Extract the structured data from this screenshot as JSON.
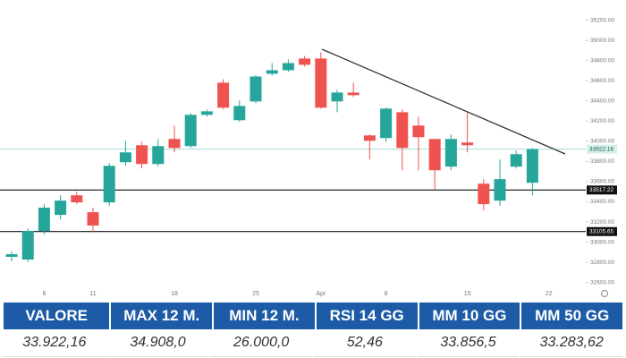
{
  "chart_data": {
    "type": "candlestick",
    "categories": [
      null,
      null,
      "6",
      null,
      null,
      "11",
      null,
      null,
      null,
      null,
      "18",
      null,
      null,
      null,
      null,
      "25",
      null,
      null,
      null,
      "Apr",
      null,
      null,
      null,
      "8",
      null,
      null,
      null,
      null,
      "15",
      null,
      null,
      null,
      null,
      "22"
    ],
    "open": [
      32855,
      32828,
      33111,
      33271,
      33465,
      33297,
      33395,
      33793,
      33961,
      33775,
      34023,
      33952,
      34262,
      34581,
      34209,
      34395,
      34669,
      34704,
      34820,
      34820,
      34395,
      34483,
      34058,
      34032,
      34288,
      34156,
      34023,
      33749,
      33988,
      33580,
      33412,
      33749,
      33589,
      null
    ],
    "high": [
      32908,
      33138,
      33377,
      33465,
      33501,
      33342,
      33784,
      34005,
      33996,
      34023,
      34156,
      34280,
      34315,
      34616,
      34404,
      34660,
      34775,
      34811,
      34846,
      34881,
      34510,
      34581,
      34067,
      34333,
      34315,
      34244,
      34023,
      34067,
      34288,
      33625,
      33819,
      33908,
      33934,
      null
    ],
    "low": [
      32810,
      32802,
      33076,
      33226,
      33377,
      33094,
      33359,
      33757,
      33731,
      33749,
      33890,
      33934,
      34244,
      34315,
      34191,
      34377,
      34651,
      34687,
      34740,
      34324,
      34288,
      34439,
      33819,
      33996,
      33713,
      33713,
      33519,
      33713,
      33890,
      33315,
      33359,
      33731,
      33465,
      null
    ],
    "close": [
      32881,
      33111,
      33342,
      33412,
      33395,
      33165,
      33757,
      33890,
      33775,
      33952,
      33934,
      34262,
      34297,
      34333,
      34350,
      34642,
      34704,
      34775,
      34758,
      34333,
      34483,
      34457,
      34005,
      34324,
      33934,
      34041,
      33713,
      34023,
      33961,
      33377,
      33625,
      33872,
      33922.16,
      null
    ],
    "up_color": "#26a69a",
    "down_color": "#ef5350",
    "ylim": [
      32500,
      35400
    ],
    "yticks": [
      {
        "value": 35200,
        "label": "35200.00"
      },
      {
        "value": 35000,
        "label": "35000.00"
      },
      {
        "value": 34800,
        "label": "34800.00"
      },
      {
        "value": 34600,
        "label": "34600.00"
      },
      {
        "value": 34400,
        "label": "34400.00"
      },
      {
        "value": 34200,
        "label": "34200.00"
      },
      {
        "value": 34000,
        "label": "34000.00"
      },
      {
        "value": 33800,
        "label": "33800.00"
      },
      {
        "value": 33600,
        "label": "33600.00"
      },
      {
        "value": 33400,
        "label": "33400.00"
      },
      {
        "value": 33200,
        "label": "33200.00"
      },
      {
        "value": 33000,
        "label": "33000.00"
      },
      {
        "value": 32800,
        "label": "32800.00"
      },
      {
        "value": 32600,
        "label": "32600.00"
      }
    ],
    "levels": [
      33517.22,
      33105.65
    ],
    "last_price": 33922.16
  },
  "table": {
    "headers": [
      "VALORE",
      "MAX 12 M.",
      "MIN 12 M.",
      "RSI 14 GG",
      "MM 10 GG",
      "MM 50 GG"
    ],
    "values": [
      "33.922,16",
      "34.908,0",
      "26.000,0",
      "52,46",
      "33.856,5",
      "33.283,62"
    ]
  }
}
